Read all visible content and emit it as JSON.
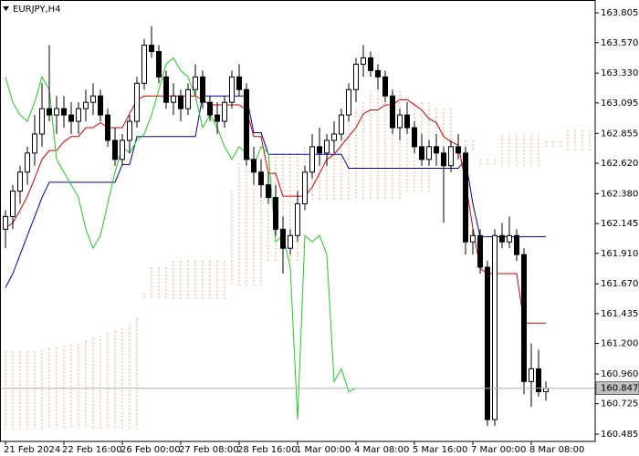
{
  "chart_data": {
    "type": "candlestick",
    "title": "EURJPY,H4",
    "categories": [
      "21 Feb 2024",
      null,
      null,
      null,
      null,
      null,
      null,
      null,
      "22 Feb 16:00",
      null,
      null,
      null,
      null,
      null,
      null,
      null,
      "26 Feb 00:00",
      null,
      null,
      null,
      null,
      null,
      null,
      null,
      "27 Feb 08:00",
      null,
      null,
      null,
      null,
      null,
      null,
      null,
      "28 Feb 16:00",
      null,
      null,
      null,
      null,
      null,
      null,
      null,
      "1 Mar 00:00",
      null,
      null,
      null,
      null,
      null,
      null,
      null,
      "4 Mar 08:00",
      null,
      null,
      null,
      null,
      null,
      null,
      null,
      "5 Mar 16:00",
      null,
      null,
      null,
      null,
      null,
      null,
      null,
      "7 Mar 00:00",
      null,
      null,
      null,
      null,
      null,
      null,
      null,
      "8 Mar 08:00",
      null,
      null,
      null,
      null,
      null,
      null,
      null,
      null
    ],
    "open": [
      162.1,
      162.2,
      162.4,
      162.55,
      162.7,
      162.85,
      163.05,
      163.0,
      163.05,
      163.0,
      162.95,
      163.05,
      163.1,
      163.15,
      163.0,
      162.8,
      162.65,
      162.8,
      162.95,
      163.25,
      163.55,
      163.5,
      163.3,
      163.1,
      163.15,
      163.05,
      163.2,
      163.3,
      163.1,
      163.0,
      162.95,
      163.1,
      163.3,
      163.2,
      162.65,
      162.55,
      162.45,
      162.35,
      162.1,
      161.95,
      162.05,
      162.3,
      162.55,
      162.75,
      162.7,
      162.8,
      162.85,
      163.0,
      163.2,
      163.4,
      163.45,
      163.35,
      163.3,
      163.15,
      162.9,
      163.0,
      162.9,
      162.75,
      162.65,
      162.75,
      162.7,
      162.6,
      162.75,
      162.7,
      162.0,
      162.05,
      161.8,
      160.6,
      162.05,
      162.0,
      162.05,
      161.9,
      160.9,
      161.0,
      160.82,
      null,
      null,
      null,
      null,
      null,
      null
    ],
    "high": [
      162.25,
      162.45,
      162.6,
      162.75,
      163.0,
      163.25,
      163.55,
      163.15,
      163.15,
      163.1,
      163.1,
      163.2,
      163.25,
      163.2,
      163.05,
      162.9,
      162.85,
      163.0,
      163.3,
      163.6,
      163.7,
      163.55,
      163.35,
      163.25,
      163.2,
      163.25,
      163.4,
      163.35,
      163.15,
      163.1,
      163.15,
      163.35,
      163.4,
      163.25,
      162.75,
      162.65,
      162.55,
      162.45,
      162.2,
      162.1,
      162.4,
      162.6,
      162.85,
      162.9,
      162.85,
      162.95,
      163.05,
      163.25,
      163.45,
      163.55,
      163.5,
      163.4,
      163.35,
      163.2,
      163.05,
      163.1,
      162.95,
      162.85,
      162.8,
      162.85,
      162.75,
      162.8,
      162.85,
      162.75,
      162.1,
      162.1,
      161.85,
      162.1,
      162.15,
      162.2,
      162.1,
      161.95,
      161.2,
      161.15,
      160.9,
      null,
      null,
      null,
      null,
      null,
      null
    ],
    "low": [
      161.95,
      162.1,
      162.3,
      162.45,
      162.6,
      162.75,
      162.95,
      162.85,
      162.9,
      162.85,
      162.85,
      162.95,
      163.0,
      162.95,
      162.75,
      162.6,
      162.6,
      162.7,
      162.9,
      163.2,
      163.45,
      163.25,
      163.05,
      163.0,
      162.95,
      163.0,
      163.15,
      163.05,
      162.95,
      162.85,
      162.9,
      163.05,
      163.15,
      162.6,
      162.45,
      162.35,
      162.3,
      162.05,
      161.75,
      161.9,
      162.0,
      162.25,
      162.5,
      162.6,
      162.6,
      162.7,
      162.8,
      162.95,
      163.1,
      163.3,
      163.3,
      163.2,
      163.1,
      162.85,
      162.8,
      162.85,
      162.7,
      162.6,
      162.6,
      162.6,
      162.15,
      162.55,
      162.65,
      161.9,
      161.9,
      161.75,
      160.55,
      160.55,
      161.95,
      161.95,
      161.85,
      160.8,
      160.7,
      160.78,
      160.75,
      null,
      null,
      null,
      null,
      null,
      null
    ],
    "close": [
      162.2,
      162.4,
      162.55,
      162.7,
      162.85,
      163.05,
      163.0,
      163.05,
      163.0,
      162.95,
      163.05,
      163.1,
      163.15,
      163.0,
      162.8,
      162.65,
      162.8,
      162.95,
      163.25,
      163.55,
      163.5,
      163.3,
      163.1,
      163.15,
      163.05,
      163.2,
      163.3,
      163.1,
      163.0,
      162.95,
      163.1,
      163.3,
      163.2,
      162.65,
      162.55,
      162.45,
      162.35,
      162.1,
      161.95,
      162.05,
      162.3,
      162.55,
      162.75,
      162.7,
      162.8,
      162.85,
      163.0,
      163.2,
      163.4,
      163.45,
      163.35,
      163.3,
      163.15,
      162.9,
      163.0,
      162.9,
      162.75,
      162.65,
      162.75,
      162.7,
      162.6,
      162.75,
      162.7,
      162.0,
      162.05,
      161.8,
      160.6,
      162.05,
      162.0,
      162.05,
      161.9,
      160.9,
      161.0,
      160.82,
      160.847,
      null,
      null,
      null,
      null,
      null,
      null
    ],
    "lines": [
      {
        "color": "#0000a0",
        "values": [
          161.64,
          161.75,
          161.9,
          162.05,
          162.2,
          162.35,
          162.47,
          162.47,
          162.47,
          162.47,
          162.47,
          162.47,
          162.47,
          162.47,
          162.47,
          162.47,
          162.61,
          162.61,
          162.83,
          162.83,
          162.83,
          162.83,
          162.83,
          162.83,
          162.83,
          162.83,
          162.83,
          163.15,
          163.15,
          163.15,
          163.15,
          163.15,
          163.15,
          163.15,
          162.86,
          162.86,
          162.69,
          162.69,
          162.69,
          162.69,
          162.69,
          162.69,
          162.69,
          162.69,
          162.69,
          162.69,
          162.69,
          162.58,
          162.58,
          162.58,
          162.58,
          162.58,
          162.58,
          162.58,
          162.58,
          162.58,
          162.58,
          162.58,
          162.58,
          162.58,
          162.58,
          162.58,
          162.58,
          162.65,
          162.3,
          162.04,
          162.04,
          162.04,
          162.04,
          162.04,
          162.04,
          162.04,
          162.04,
          162.04,
          162.04,
          null,
          null,
          null,
          null,
          null,
          null
        ]
      },
      {
        "color": "#d00000",
        "values": [
          162.11,
          162.15,
          162.25,
          162.36,
          162.5,
          162.65,
          162.72,
          162.72,
          162.79,
          162.83,
          162.83,
          162.9,
          162.9,
          162.94,
          162.9,
          162.9,
          162.9,
          163.01,
          163.12,
          163.15,
          163.15,
          163.15,
          163.15,
          163.15,
          163.15,
          163.15,
          163.15,
          163.12,
          163.08,
          163.08,
          163.08,
          163.08,
          163.08,
          163.04,
          162.83,
          162.83,
          162.54,
          162.54,
          162.36,
          162.36,
          162.36,
          162.36,
          162.43,
          162.54,
          162.65,
          162.69,
          162.76,
          162.83,
          162.9,
          163.01,
          163.04,
          163.04,
          163.08,
          163.08,
          163.12,
          163.12,
          163.08,
          163.04,
          162.97,
          162.94,
          162.83,
          162.79,
          162.76,
          162.47,
          162.11,
          161.79,
          161.75,
          161.75,
          161.75,
          161.75,
          161.75,
          161.36,
          161.36,
          161.36,
          161.36,
          null,
          null,
          null,
          null,
          null,
          null
        ]
      },
      {
        "color": "#22cc22",
        "values": [
          163.3,
          163.1,
          163.0,
          162.95,
          163.1,
          163.3,
          163.2,
          162.65,
          162.55,
          162.45,
          162.35,
          162.1,
          161.95,
          162.05,
          162.3,
          162.55,
          162.75,
          162.7,
          162.8,
          162.85,
          163.0,
          163.2,
          163.4,
          163.45,
          163.35,
          163.3,
          163.15,
          162.9,
          163.0,
          162.9,
          162.75,
          162.65,
          162.75,
          162.7,
          162.6,
          162.75,
          162.7,
          162.0,
          162.05,
          161.8,
          160.6,
          162.05,
          162.0,
          162.05,
          161.9,
          160.9,
          161.0,
          160.82,
          160.847,
          null,
          null,
          null,
          null,
          null,
          null,
          null,
          null,
          null,
          null,
          null,
          null,
          null,
          null,
          null,
          null,
          null,
          null,
          null,
          null,
          null,
          null,
          null,
          null,
          null,
          null,
          null,
          null,
          null,
          null,
          null,
          null
        ]
      }
    ],
    "cloud": {
      "color": "#f4a460",
      "span_a": [
        161.14,
        161.14,
        161.14,
        161.14,
        161.14,
        161.15,
        161.16,
        161.17,
        161.18,
        161.19,
        161.2,
        161.22,
        161.24,
        161.26,
        161.28,
        161.3,
        161.32,
        161.35,
        161.4,
        161.6,
        161.8,
        161.8,
        161.8,
        161.85,
        161.85,
        161.85,
        161.85,
        161.85,
        161.85,
        161.85,
        161.85,
        162.4,
        162.62,
        162.62,
        162.62,
        162.62,
        162.7,
        162.7,
        162.7,
        162.7,
        162.7,
        162.75,
        162.75,
        162.75,
        162.75,
        162.95,
        162.95,
        162.95,
        163.05,
        163.1,
        163.19,
        163.19,
        163.19,
        163.19,
        163.19,
        163.1,
        163.1,
        163.1,
        163.1,
        163.05,
        163.05,
        163.05,
        162.8,
        162.8,
        162.8,
        162.65,
        162.65,
        162.65,
        162.6,
        162.6,
        162.6,
        162.6,
        162.6,
        162.6,
        162.75,
        162.75,
        162.75,
        162.88,
        162.88,
        162.88,
        162.88
      ],
      "span_b": [
        160.53,
        160.53,
        160.53,
        160.53,
        160.53,
        160.53,
        160.53,
        160.53,
        160.53,
        160.53,
        160.53,
        160.53,
        160.53,
        160.53,
        160.53,
        160.53,
        160.53,
        160.53,
        160.53,
        161.55,
        161.55,
        161.55,
        161.55,
        161.55,
        161.55,
        161.55,
        161.55,
        161.55,
        161.55,
        161.55,
        161.55,
        161.65,
        161.65,
        161.65,
        161.65,
        161.65,
        161.85,
        161.85,
        161.85,
        161.85,
        161.85,
        162.33,
        162.33,
        162.33,
        162.33,
        162.33,
        162.33,
        162.33,
        162.33,
        162.33,
        162.33,
        162.33,
        162.33,
        162.33,
        162.33,
        162.4,
        162.4,
        162.4,
        162.4,
        162.62,
        162.62,
        162.62,
        162.72,
        162.72,
        162.72,
        162.6,
        162.6,
        162.6,
        162.85,
        162.85,
        162.85,
        162.85,
        162.85,
        162.85,
        162.8,
        162.8,
        162.8,
        162.72,
        162.72,
        162.72,
        162.72
      ]
    },
    "last_price": 160.847,
    "ylim": [
      160.428,
      163.906
    ],
    "yticks": [
      163.805,
      {
        "value": 163.57,
        "label": "163.570"
      },
      {
        "value": 163.33,
        "label": "163.330"
      },
      163.095,
      162.855,
      {
        "value": 162.62,
        "label": "162.620"
      },
      {
        "value": 162.38,
        "label": "162.380"
      },
      162.145,
      {
        "value": 161.91,
        "label": "161.910"
      },
      {
        "value": 161.67,
        "label": "161.670"
      },
      161.435,
      {
        "value": 161.2,
        "label": "161.200"
      },
      {
        "value": 160.96,
        "label": "160.960"
      },
      160.725,
      160.485
    ],
    "grid": false
  }
}
